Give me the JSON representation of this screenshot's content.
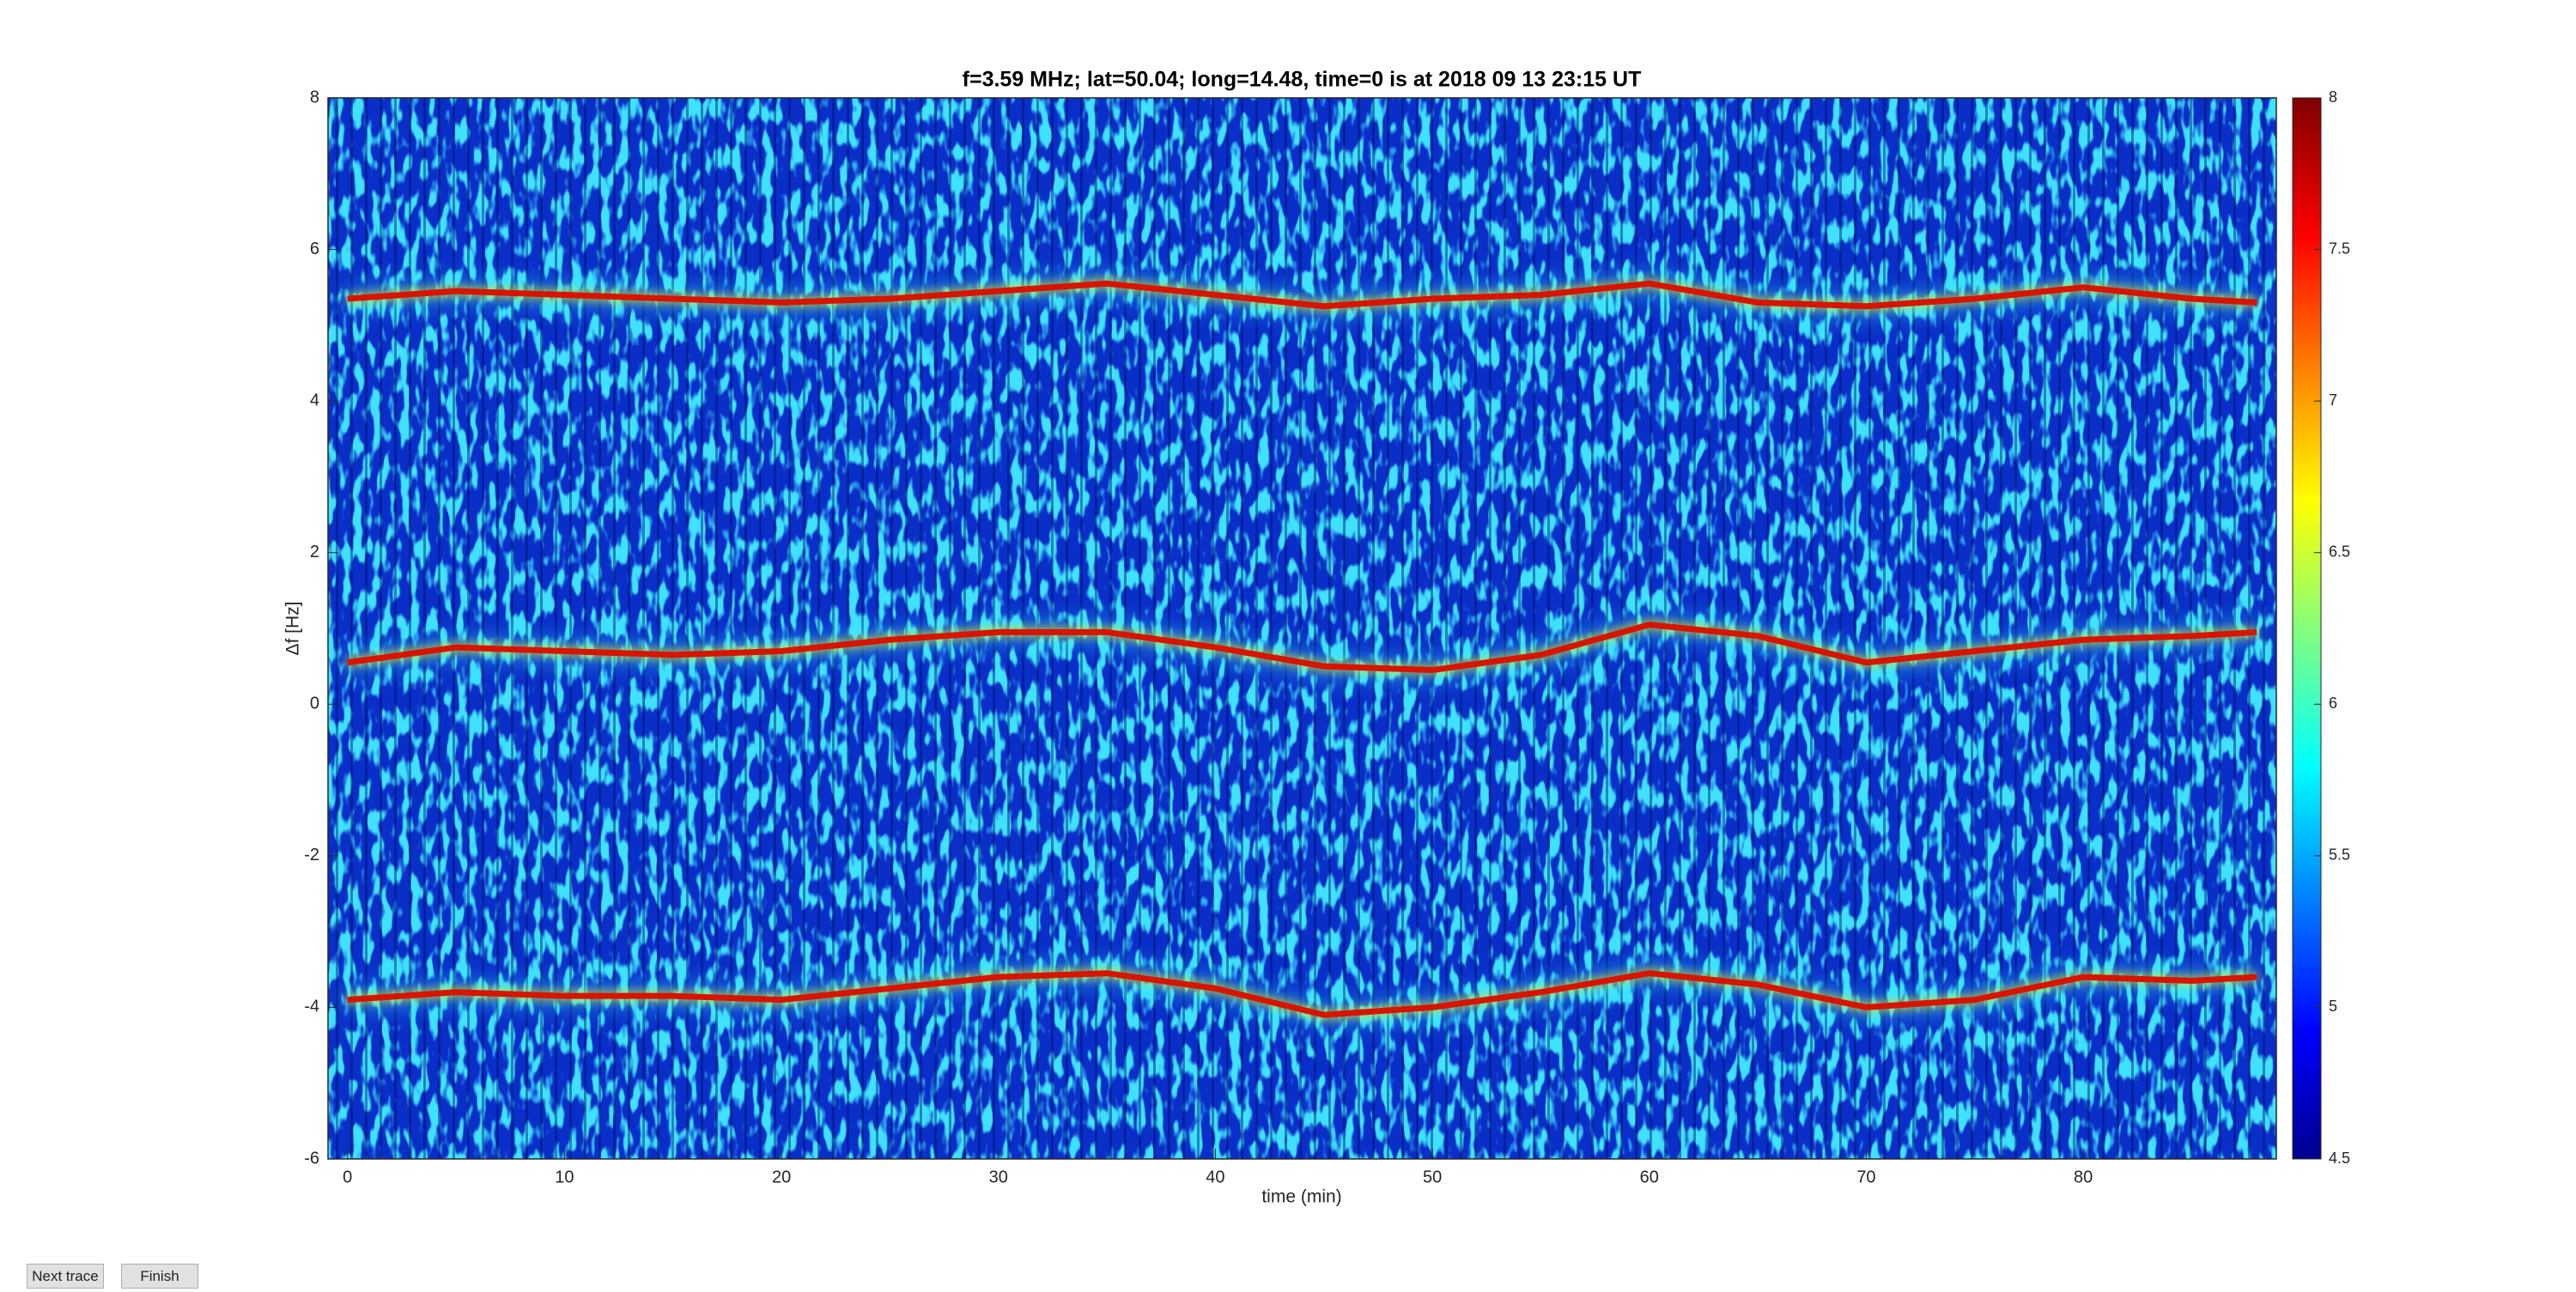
{
  "chart_data": {
    "type": "line",
    "title": "f=3.59 MHz;  lat=50.04; long=14.48, time=0 is at 2018 09 13 23:15 UT",
    "xlabel": "time (min)",
    "ylabel": "Δf [Hz]",
    "x": [
      0,
      5,
      10,
      15,
      20,
      25,
      30,
      35,
      40,
      45,
      50,
      55,
      60,
      65,
      70,
      75,
      80,
      85,
      88
    ],
    "series": [
      {
        "color": "#d81400",
        "values": [
          5.35,
          5.45,
          5.4,
          5.35,
          5.3,
          5.35,
          5.45,
          5.55,
          5.4,
          5.25,
          5.35,
          5.4,
          5.55,
          5.3,
          5.25,
          5.35,
          5.5,
          5.35,
          5.3
        ]
      },
      {
        "color": "#d81400",
        "values": [
          0.55,
          0.75,
          0.7,
          0.65,
          0.7,
          0.85,
          0.95,
          0.95,
          0.75,
          0.5,
          0.45,
          0.65,
          1.05,
          0.9,
          0.55,
          0.7,
          0.85,
          0.9,
          0.95
        ]
      },
      {
        "color": "#d81400",
        "values": [
          -3.9,
          -3.8,
          -3.85,
          -3.85,
          -3.9,
          -3.75,
          -3.6,
          -3.55,
          -3.75,
          -4.1,
          -4.0,
          -3.8,
          -3.55,
          -3.7,
          -4.0,
          -3.9,
          -3.6,
          -3.65,
          -3.6
        ]
      }
    ],
    "xlim": [
      -0.9,
      88.9
    ],
    "xticks": [
      0,
      10,
      20,
      30,
      40,
      50,
      60,
      70,
      80
    ],
    "ylim": [
      -6,
      8
    ],
    "yticks": [
      -6,
      -4,
      -2,
      0,
      2,
      4,
      6,
      8
    ],
    "clim": [
      4.5,
      8
    ],
    "cticks": [
      4.5,
      5,
      5.5,
      6,
      6.5,
      7,
      7.5,
      8
    ],
    "colormap": "jet"
  },
  "buttons": [
    "Next trace",
    "Finish"
  ]
}
